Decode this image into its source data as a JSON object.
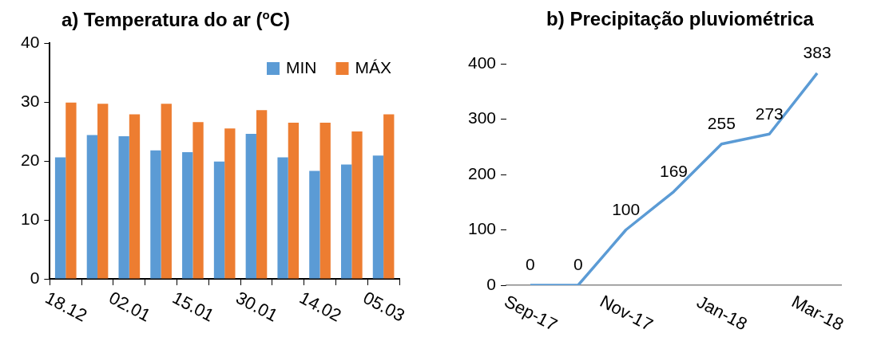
{
  "chart_data": [
    {
      "type": "bar",
      "title": "a) Temperatura do ar ($^{o}$C)",
      "categories": [
        "18.12",
        null,
        "02.01",
        null,
        "15.01",
        null,
        "30.01",
        null,
        "14.02",
        null,
        "05.03"
      ],
      "series": [
        {
          "name": "MIN",
          "color": "#5b9bd5",
          "values": [
            20.6,
            24.4,
            24.2,
            21.8,
            21.5,
            19.9,
            24.6,
            20.6,
            18.3,
            19.4,
            20.9
          ]
        },
        {
          "name": "MÁX",
          "color": "#ed7d31",
          "values": [
            29.9,
            29.7,
            27.9,
            29.7,
            26.6,
            25.5,
            28.6,
            26.5,
            26.5,
            25.0,
            27.9
          ]
        }
      ],
      "ylim": [
        0,
        40
      ],
      "yticks": [
        0,
        10,
        20,
        30,
        40
      ],
      "grid": false,
      "legend": "top right"
    },
    {
      "type": "line",
      "title": "b) Precipitação pluviométrica",
      "categories": [
        "Sep-17",
        null,
        "Nov-17",
        null,
        "Jan-18",
        null,
        "Mar-18"
      ],
      "values": [
        0,
        0,
        100,
        169,
        255,
        273,
        383
      ],
      "color": "#5b9bd5",
      "ylim": [
        0,
        400
      ],
      "yticks": [
        0,
        100,
        200,
        300,
        400
      ],
      "grid": false,
      "legend": false,
      "data_labels": true,
      "marker": "none"
    }
  ]
}
